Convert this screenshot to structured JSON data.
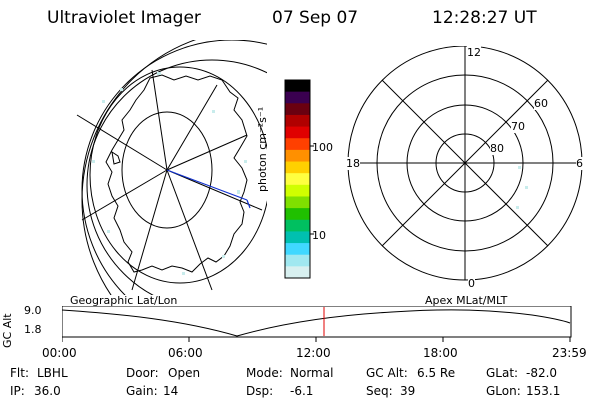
{
  "header": {
    "title": "Ultraviolet Imager",
    "date": "07 Sep 07",
    "time": "12:28:27 UT"
  },
  "colorbar": {
    "unit_label": "photon cm⁻²s⁻¹",
    "ticks": [
      "100",
      "10"
    ],
    "colors": [
      "#000000",
      "#3a0050",
      "#6a0010",
      "#b00000",
      "#e00000",
      "#ff4000",
      "#ff9000",
      "#ffd000",
      "#ffff40",
      "#d0ff00",
      "#80e000",
      "#20c000",
      "#00c060",
      "#00c0b0",
      "#40d8ff",
      "#a0e8f0",
      "#d8f0f0"
    ]
  },
  "left_panel": {
    "label": "Geographic Lat/Lon"
  },
  "right_panel": {
    "label": "Apex MLat/MLT",
    "mlt_labels": {
      "top": "12",
      "left": "18",
      "right": "6",
      "bottom": "0"
    },
    "lat_labels": [
      "60",
      "70",
      "80"
    ]
  },
  "altitude_plot": {
    "ylabel": "GC Alt",
    "yticks": [
      "9.0",
      "1.8"
    ],
    "xticks": [
      "00:00",
      "06:00",
      "12:00",
      "18:00",
      "23:59"
    ],
    "marker_color": "#e00000"
  },
  "footer": {
    "rows": [
      [
        {
          "key": "Flt:",
          "val": "LBHL"
        },
        {
          "key": "Door:",
          "val": "Open"
        },
        {
          "key": "Mode:",
          "val": "Normal"
        },
        {
          "key": "GC Alt:",
          "val": "6.5 Re"
        },
        {
          "key": "GLat:",
          "val": "-82.0"
        }
      ],
      [
        {
          "key": "IP:",
          "val": "36.0"
        },
        {
          "key": "Gain:",
          "val": "14"
        },
        {
          "key": "Dsp:",
          "val": "-6.1"
        },
        {
          "key": "Seq:",
          "val": "39"
        },
        {
          "key": "GLon:",
          "val": "153.1"
        }
      ]
    ]
  }
}
